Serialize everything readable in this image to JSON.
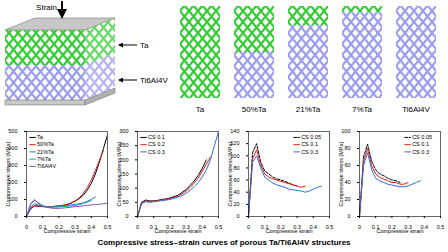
{
  "diagram": {
    "load_label": "Strain",
    "layers": [
      {
        "name": "Ta",
        "color": "#33cc33"
      },
      {
        "name": "Ti6Al4V",
        "color": "#9c9cf0"
      }
    ],
    "panels": [
      {
        "label": "Ta",
        "ta_percent": 100
      },
      {
        "label": "50%Ta",
        "ta_percent": 50
      },
      {
        "label": "21%Ta",
        "ta_percent": 21
      },
      {
        "label": "7%Ta",
        "ta_percent": 7
      },
      {
        "label": "Ti6Al4V",
        "ta_percent": 0
      }
    ]
  },
  "caption": "Compressive stress–strain curves of porous Ta/Ti6Al4V structures",
  "chart_data": [
    {
      "type": "line",
      "x_label": "Compressive strain",
      "y_label": "Compressive stress (MPa)",
      "x": [
        0,
        0.025,
        0.05,
        0.075,
        0.1,
        0.125,
        0.15,
        0.175,
        0.2,
        0.225,
        0.25,
        0.275,
        0.3,
        0.325,
        0.35,
        0.375,
        0.4,
        0.425,
        0.45,
        0.475,
        0.5
      ],
      "xlim": [
        0,
        0.5
      ],
      "xticks": [
        0,
        0.1,
        0.2,
        0.3,
        0.4,
        0.5
      ],
      "ylim": [
        0,
        500
      ],
      "yticks": [
        0,
        100,
        200,
        300,
        400,
        500
      ],
      "legend": "top-left",
      "grid": false,
      "series": [
        {
          "name": "Ta",
          "color": "#000000",
          "line_style": "solid",
          "values": [
            0,
            45,
            62,
            60,
            58,
            57,
            58,
            60,
            62,
            65,
            70,
            78,
            90,
            105,
            125,
            155,
            195,
            250,
            320,
            400,
            480
          ]
        },
        {
          "name": "50%Ta",
          "color": "#e02020",
          "line_style": "solid",
          "values": [
            0,
            48,
            65,
            62,
            60,
            58,
            58,
            59,
            62,
            66,
            72,
            80,
            92,
            110,
            135,
            170,
            215,
            270,
            330,
            390,
            null
          ]
        },
        {
          "name": "21%Ta",
          "color": "#2f6fe0",
          "line_style": "solid",
          "values": [
            0,
            55,
            75,
            68,
            60,
            55,
            55,
            58,
            60,
            62,
            65,
            68,
            72,
            75,
            80,
            90,
            100,
            115,
            null,
            null,
            null
          ]
        },
        {
          "name": "7%Ta",
          "color": "#1aa89a",
          "line_style": "solid",
          "values": [
            0,
            70,
            95,
            80,
            65,
            58,
            55,
            55,
            56,
            58,
            60,
            62,
            65,
            70,
            75,
            85,
            95,
            null,
            null,
            null,
            null
          ]
        },
        {
          "name": "Ti6Al4V",
          "color": "#8a4fc0",
          "line_style": "solid",
          "values": [
            0,
            75,
            100,
            75,
            60,
            55,
            50,
            48,
            48,
            50,
            52,
            55,
            58,
            60,
            62,
            65,
            68,
            70,
            72,
            75,
            80
          ]
        }
      ]
    },
    {
      "type": "line",
      "x_label": "Compressive strain",
      "y_label": "Compressive stress (MPa)",
      "x": [
        0,
        0.025,
        0.05,
        0.075,
        0.1,
        0.125,
        0.15,
        0.175,
        0.2,
        0.225,
        0.25,
        0.275,
        0.3,
        0.325,
        0.35,
        0.375,
        0.4,
        0.425,
        0.45,
        0.475,
        0.5
      ],
      "xlim": [
        0,
        0.5
      ],
      "xticks": [
        0,
        0.1,
        0.2,
        0.3,
        0.4,
        0.5
      ],
      "ylim": [
        0,
        300
      ],
      "yticks": [
        0,
        50,
        100,
        150,
        200,
        250,
        300
      ],
      "legend": "top-left",
      "grid": false,
      "series": [
        {
          "name": "CS 0.1",
          "color": "#000000",
          "line_style": "solid",
          "values": [
            0,
            50,
            58,
            55,
            55,
            57,
            60,
            62,
            65,
            70,
            75,
            85,
            95,
            110,
            125,
            145,
            170,
            200,
            null,
            null,
            null
          ]
        },
        {
          "name": "CS 0.2",
          "color": "#e02020",
          "line_style": "solid",
          "values": [
            0,
            48,
            55,
            53,
            54,
            56,
            58,
            60,
            63,
            67,
            72,
            80,
            90,
            102,
            118,
            135,
            160,
            185,
            210,
            null,
            null
          ]
        },
        {
          "name": "CS 0.3",
          "color": "#2f6fe0",
          "line_style": "solid",
          "values": [
            0,
            45,
            52,
            50,
            52,
            54,
            56,
            58,
            60,
            64,
            68,
            74,
            82,
            92,
            105,
            120,
            140,
            165,
            200,
            250,
            300
          ]
        }
      ]
    },
    {
      "type": "line",
      "x_label": "Compressive strain",
      "y_label": "Compressive stress (MPa)",
      "x": [
        0,
        0.025,
        0.05,
        0.075,
        0.1,
        0.125,
        0.15,
        0.175,
        0.2,
        0.225,
        0.25,
        0.275,
        0.3,
        0.325,
        0.35,
        0.375,
        0.4,
        0.425,
        0.45,
        0.475,
        0.5
      ],
      "xlim": [
        0,
        0.5
      ],
      "xticks": [
        0,
        0.1,
        0.2,
        0.3,
        0.4,
        0.5
      ],
      "ylim": [
        0,
        140
      ],
      "yticks": [
        0,
        20,
        40,
        60,
        80,
        100,
        120,
        140
      ],
      "legend": "top-right",
      "grid": false,
      "series": [
        {
          "name": "CS 0.05",
          "color": "#000000",
          "line_style": "dashed",
          "values": [
            0,
            105,
            120,
            90,
            75,
            70,
            65,
            62,
            60,
            58,
            55,
            52,
            50,
            null,
            null,
            null,
            null,
            null,
            null,
            null,
            null
          ]
        },
        {
          "name": "CS 0.1",
          "color": "#e02020",
          "line_style": "solid",
          "values": [
            0,
            95,
            110,
            85,
            70,
            65,
            62,
            60,
            58,
            56,
            54,
            52,
            50,
            48,
            50,
            null,
            null,
            null,
            null,
            null,
            null
          ]
        },
        {
          "name": "CS 0.3",
          "color": "#2f6fe0",
          "line_style": "solid",
          "values": [
            0,
            90,
            100,
            80,
            65,
            60,
            55,
            52,
            50,
            48,
            45,
            44,
            43,
            42,
            40,
            42,
            45,
            48,
            50,
            null,
            null
          ]
        }
      ]
    },
    {
      "type": "line",
      "x_label": "Compressive strain",
      "y_label": "Compressive stress (MPa)",
      "x": [
        0,
        0.025,
        0.05,
        0.075,
        0.1,
        0.125,
        0.15,
        0.175,
        0.2,
        0.225,
        0.25,
        0.275,
        0.3,
        0.325,
        0.35,
        0.375,
        0.4,
        0.425,
        0.45,
        0.475,
        0.5
      ],
      "xlim": [
        0,
        0.5
      ],
      "xticks": [
        0,
        0.1,
        0.2,
        0.3,
        0.4,
        0.5
      ],
      "ylim": [
        0,
        100
      ],
      "yticks": [
        0,
        20,
        40,
        60,
        80,
        100
      ],
      "legend": "top-right",
      "grid": false,
      "series": [
        {
          "name": "CS 0.05",
          "color": "#000000",
          "line_style": "dashed",
          "values": [
            0,
            70,
            85,
            65,
            55,
            50,
            48,
            45,
            43,
            42,
            40,
            null,
            null,
            null,
            null,
            null,
            null,
            null,
            null,
            null,
            null
          ]
        },
        {
          "name": "CS 0.1",
          "color": "#e02020",
          "line_style": "solid",
          "values": [
            0,
            65,
            80,
            60,
            50,
            46,
            44,
            42,
            40,
            40,
            38,
            38,
            40,
            null,
            null,
            null,
            null,
            null,
            null,
            null,
            null
          ]
        },
        {
          "name": "CS 0.3",
          "color": "#2f6fe0",
          "line_style": "solid",
          "values": [
            0,
            60,
            75,
            55,
            45,
            42,
            40,
            38,
            37,
            36,
            35,
            35,
            36,
            38,
            40,
            42,
            null,
            null,
            null,
            null,
            null
          ]
        }
      ]
    }
  ]
}
